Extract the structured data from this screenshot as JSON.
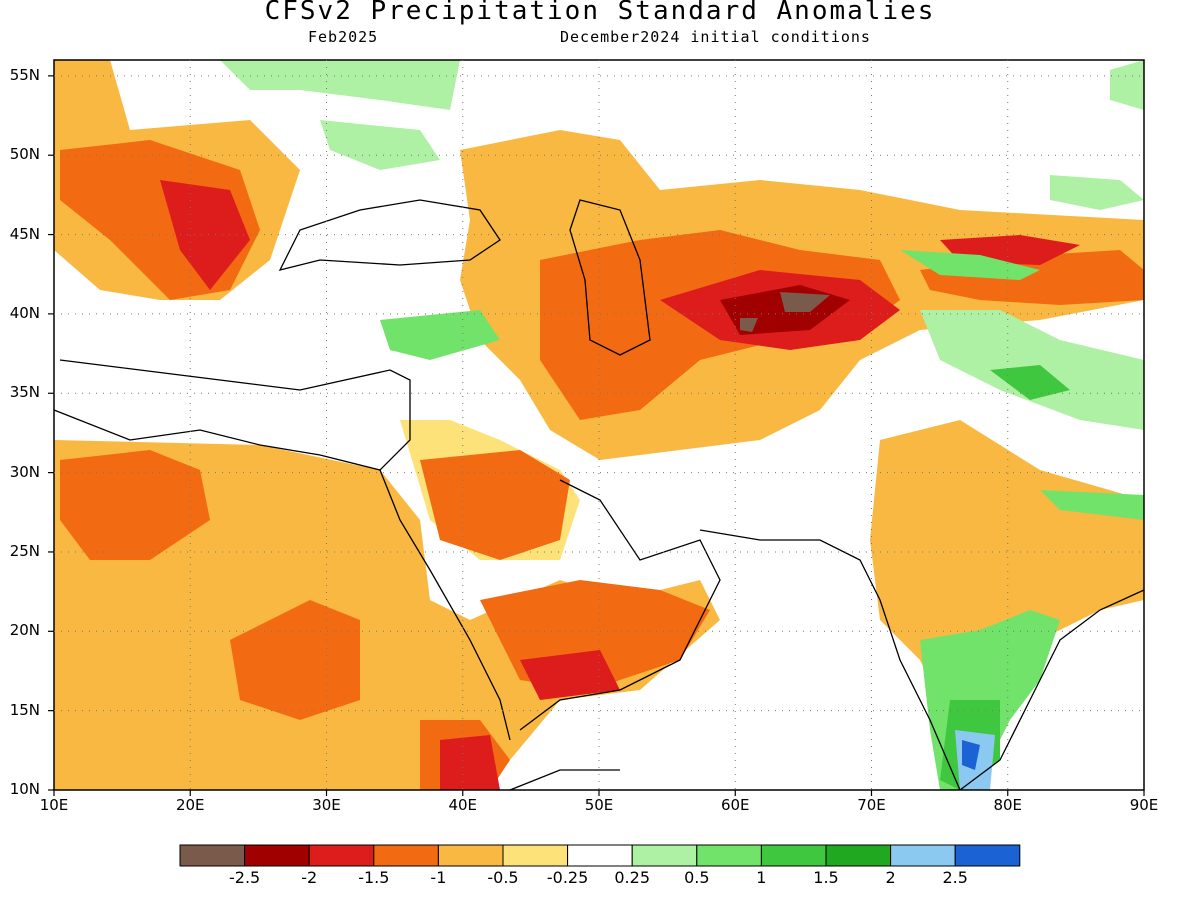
{
  "header": {
    "title": "CFSv2 Precipitation Standard Anomalies",
    "forecast_month": "Feb2025",
    "initial_conditions": "December2024 initial conditions"
  },
  "map": {
    "lon_range": [
      10,
      90
    ],
    "lat_range": [
      10,
      56
    ],
    "lat_labels": [
      "55N",
      "50N",
      "45N",
      "40N",
      "35N",
      "30N",
      "25N",
      "20N",
      "15N",
      "10N"
    ],
    "lon_labels": [
      "10E",
      "20E",
      "30E",
      "40E",
      "50E",
      "60E",
      "70E",
      "80E",
      "90E"
    ],
    "gridlines": "dotted"
  },
  "legend": {
    "colors": [
      "#7a5a4a",
      "#a00000",
      "#dd1c1c",
      "#f26a12",
      "#f9b841",
      "#fde27a",
      "#ffffff",
      "#aef0a4",
      "#72e36a",
      "#3fc83f",
      "#20a820",
      "#8cc9f0",
      "#1b63d4"
    ],
    "labels": [
      "-2.5",
      "-2",
      "-1.5",
      "-1",
      "-0.5",
      "-0.25",
      "0.25",
      "0.5",
      "1",
      "1.5",
      "2",
      "2.5"
    ]
  }
}
